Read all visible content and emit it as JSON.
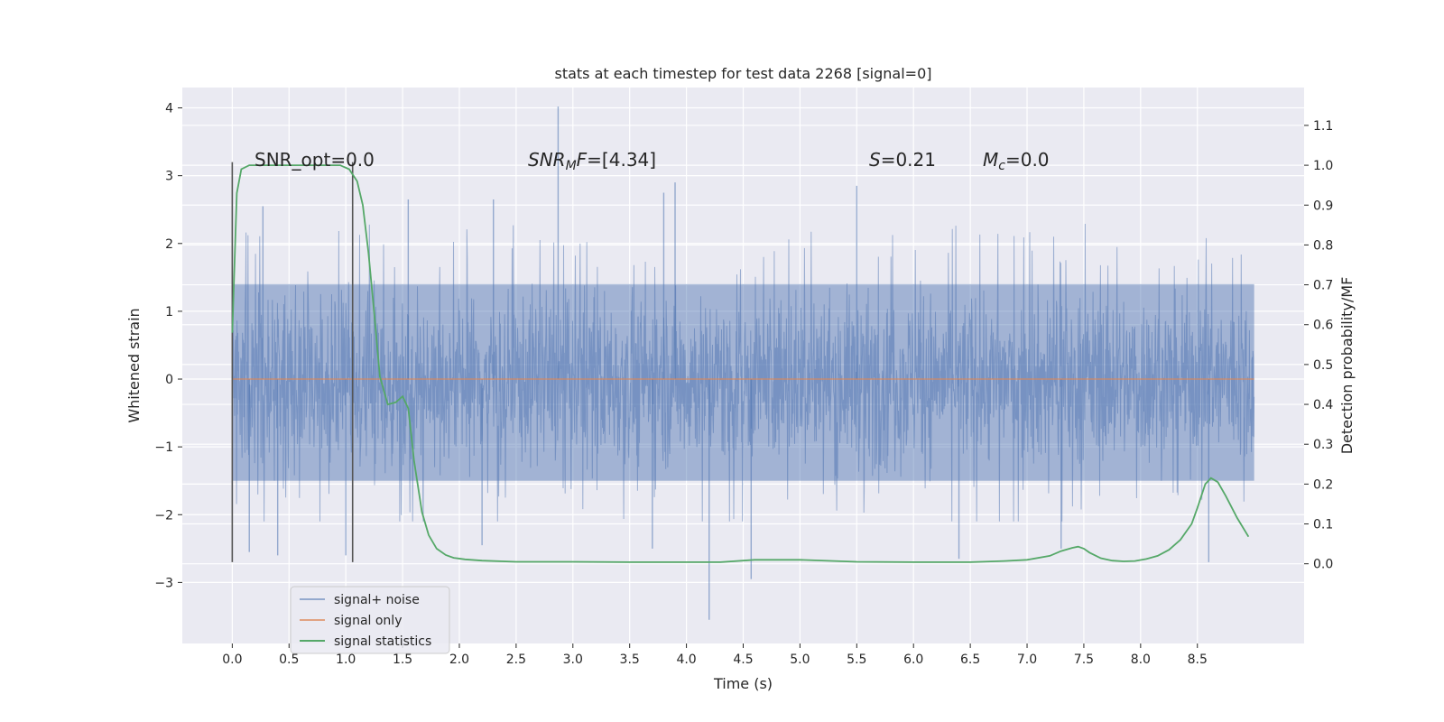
{
  "chart_data": {
    "type": "line",
    "title": "stats at each timestep for test data 2268 [signal=0]",
    "xlabel": "Time (s)",
    "ylabel_left": "Whitened strain",
    "ylabel_right": "Detection probability/MF",
    "xlim": [
      -0.44,
      9.44
    ],
    "ylim_left": [
      -3.9,
      4.3
    ],
    "ylim_right": [
      -0.2,
      1.195
    ],
    "x_ticks": [
      0.0,
      0.5,
      1.0,
      1.5,
      2.0,
      2.5,
      3.0,
      3.5,
      4.0,
      4.5,
      5.0,
      5.5,
      6.0,
      6.5,
      7.0,
      7.5,
      8.0,
      8.5
    ],
    "x_tick_labels": [
      "0.0",
      "0.5",
      "1.0",
      "1.5",
      "2.0",
      "2.5",
      "3.0",
      "3.5",
      "4.0",
      "4.5",
      "5.0",
      "5.5",
      "6.0",
      "6.5",
      "7.0",
      "7.5",
      "8.0",
      "8.5"
    ],
    "y_left_ticks": [
      -3,
      -2,
      -1,
      0,
      1,
      2,
      3,
      4
    ],
    "y_left_tick_labels": [
      "−3",
      "−2",
      "−1",
      "0",
      "1",
      "2",
      "3",
      "4"
    ],
    "y_right_ticks": [
      0.0,
      0.1,
      0.2,
      0.3,
      0.4,
      0.5,
      0.6,
      0.7,
      0.8,
      0.9,
      1.0,
      1.1
    ],
    "y_right_tick_labels": [
      "0.0",
      "0.1",
      "0.2",
      "0.3",
      "0.4",
      "0.5",
      "0.6",
      "0.7",
      "0.8",
      "0.9",
      "1.0",
      "1.1"
    ],
    "noise_trace": {
      "name": "signal+ noise",
      "color": "#4c72b0",
      "x_range": [
        0.0,
        9.0
      ],
      "band_low": -1.5,
      "band_high": 1.4,
      "typical_peak_high": 2.3,
      "typical_peak_low": -2.1,
      "spikes": [
        {
          "x": 2.87,
          "y": 4.02
        },
        {
          "x": 0.27,
          "y": 2.55
        },
        {
          "x": 1.55,
          "y": 2.65
        },
        {
          "x": 2.3,
          "y": 2.65
        },
        {
          "x": 3.8,
          "y": 2.75
        },
        {
          "x": 3.9,
          "y": 2.9
        },
        {
          "x": 5.5,
          "y": 2.85
        },
        {
          "x": 4.2,
          "y": -3.55
        },
        {
          "x": 4.57,
          "y": -2.95
        },
        {
          "x": 0.15,
          "y": -2.55
        },
        {
          "x": 0.4,
          "y": -2.6
        },
        {
          "x": 1.0,
          "y": -2.6
        },
        {
          "x": 2.2,
          "y": -2.45
        },
        {
          "x": 3.7,
          "y": -2.5
        },
        {
          "x": 6.4,
          "y": -2.65
        },
        {
          "x": 7.3,
          "y": -2.5
        },
        {
          "x": 8.6,
          "y": -2.7
        }
      ]
    },
    "signal_only": {
      "name": "signal only",
      "color": "#dd8452",
      "x": [
        0.0,
        9.0
      ],
      "y": [
        0.0,
        0.0
      ]
    },
    "signal_statistics": {
      "name": "signal statistics",
      "color": "#55a868",
      "x": [
        0.0,
        0.04,
        0.08,
        0.15,
        0.25,
        0.4,
        0.6,
        0.8,
        0.95,
        1.03,
        1.1,
        1.15,
        1.2,
        1.25,
        1.3,
        1.37,
        1.44,
        1.5,
        1.55,
        1.6,
        1.67,
        1.73,
        1.8,
        1.88,
        1.95,
        2.05,
        2.2,
        2.5,
        3.0,
        3.5,
        4.0,
        4.3,
        4.6,
        5.0,
        5.5,
        6.0,
        6.5,
        6.8,
        7.0,
        7.2,
        7.3,
        7.4,
        7.45,
        7.5,
        7.55,
        7.65,
        7.75,
        7.85,
        7.95,
        8.05,
        8.15,
        8.25,
        8.35,
        8.45,
        8.5,
        8.57,
        8.62,
        8.68,
        8.75,
        8.85,
        8.95
      ],
      "y": [
        0.58,
        0.93,
        0.99,
        1.0,
        1.0,
        1.0,
        1.0,
        1.0,
        1.0,
        0.99,
        0.96,
        0.9,
        0.78,
        0.63,
        0.47,
        0.4,
        0.405,
        0.42,
        0.39,
        0.26,
        0.13,
        0.072,
        0.038,
        0.022,
        0.015,
        0.011,
        0.008,
        0.005,
        0.005,
        0.004,
        0.004,
        0.004,
        0.01,
        0.01,
        0.005,
        0.004,
        0.004,
        0.007,
        0.01,
        0.02,
        0.032,
        0.04,
        0.043,
        0.038,
        0.028,
        0.014,
        0.008,
        0.006,
        0.007,
        0.012,
        0.02,
        0.035,
        0.06,
        0.1,
        0.14,
        0.2,
        0.215,
        0.205,
        0.17,
        0.115,
        0.068
      ]
    },
    "markers": [
      {
        "x": 0.0,
        "y_bottom": -2.7,
        "y_top": 3.2
      },
      {
        "x": 1.06,
        "y_bottom": -2.7,
        "y_top": 3.2
      }
    ],
    "annotations": {
      "snr_opt": "SNR_opt=0.0",
      "snr_mf_prefix": "SNR",
      "snr_mf_sub": "M",
      "snr_mf_suffix": "F=[4.34]",
      "s_italic": "S",
      "s_value": "=0.21",
      "mc_italic": "M",
      "mc_sub": "c",
      "mc_value": "=0.0"
    },
    "legend": {
      "placement": "lower-left",
      "entries": [
        "signal+ noise",
        "signal only",
        "signal statistics"
      ]
    },
    "grid": true,
    "background": "#eaeaf2"
  }
}
